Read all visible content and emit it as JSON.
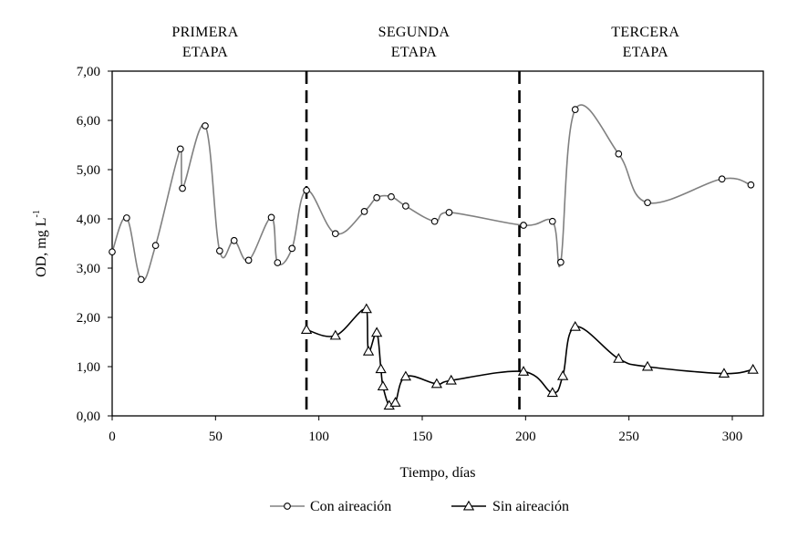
{
  "chart_data": {
    "type": "line",
    "title": "",
    "xlabel": "Tiempo, días",
    "ylabel": "OD, mg L",
    "ylabel_sup": "-1",
    "xlim": [
      0,
      315
    ],
    "ylim": [
      0,
      7
    ],
    "x_ticks": [
      0,
      50,
      100,
      150,
      200,
      250,
      300
    ],
    "x_tick_labels": [
      "0",
      "50",
      "100",
      "150",
      "200",
      "250",
      "300"
    ],
    "y_ticks": [
      0,
      1,
      2,
      3,
      4,
      5,
      6,
      7
    ],
    "y_tick_labels": [
      "0,00",
      "1,00",
      "2,00",
      "3,00",
      "4,00",
      "5,00",
      "6,00",
      "7,00"
    ],
    "grid": false,
    "legend_position": "bottom",
    "stage_dividers": [
      94,
      197
    ],
    "stages": [
      {
        "line1": "PRIMERA",
        "line2": "ETAPA",
        "x_center": 45
      },
      {
        "line1": "SEGUNDA",
        "line2": "ETAPA",
        "x_center": 146
      },
      {
        "line1": "TERCERA",
        "line2": "ETAPA",
        "x_center": 258
      }
    ],
    "series": [
      {
        "name": "Con aireación",
        "color": "#808080",
        "marker": "circle",
        "x": [
          0,
          7,
          14,
          21,
          33,
          34,
          45,
          52,
          59,
          66,
          77,
          80,
          87,
          94,
          108,
          122,
          128,
          135,
          142,
          156,
          163,
          199,
          213,
          217,
          224,
          245,
          259,
          295,
          309
        ],
        "y": [
          3.33,
          4.02,
          2.77,
          3.46,
          5.42,
          4.62,
          5.89,
          3.35,
          3.56,
          3.16,
          4.03,
          3.11,
          3.4,
          4.58,
          3.7,
          4.15,
          4.43,
          4.45,
          4.26,
          3.95,
          4.13,
          3.87,
          3.95,
          3.12,
          6.22,
          5.32,
          4.33,
          4.81,
          4.69
        ]
      },
      {
        "name": "Sin aireación",
        "color": "#000000",
        "marker": "triangle",
        "x": [
          94,
          108,
          123,
          124,
          128,
          130,
          131,
          134,
          137,
          142,
          157,
          164,
          199,
          213,
          218,
          224,
          245,
          259,
          296,
          310
        ],
        "y": [
          1.75,
          1.63,
          2.17,
          1.31,
          1.69,
          0.95,
          0.6,
          0.21,
          0.27,
          0.8,
          0.65,
          0.72,
          0.9,
          0.47,
          0.81,
          1.81,
          1.16,
          1.0,
          0.86,
          0.94
        ]
      }
    ]
  }
}
